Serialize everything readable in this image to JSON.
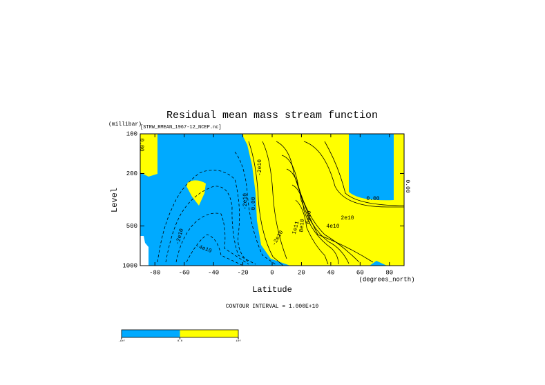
{
  "chart_data": {
    "type": "contour",
    "title": "Residual mean mass stream function",
    "subtitle": "[STRW_RMEAN_1967-12_NCEP.nc]",
    "x_label": "Latitude",
    "x_units": "(degrees_north)",
    "y_label": "Level",
    "y_units": "(millibar)",
    "xlim": [
      -90,
      90
    ],
    "xticks": [
      -80,
      -60,
      -40,
      -20,
      0,
      20,
      40,
      60,
      80
    ],
    "ylim": [
      1000,
      100
    ],
    "yticks": [
      100,
      200,
      500,
      1000
    ],
    "y_log": true,
    "negative_color": "#00aaff",
    "positive_color": "#ffff00",
    "contour_labels": [
      "0.00",
      "-2e10",
      "-4e10",
      "-2e10",
      "0.00",
      "-2e10",
      "-2e10",
      "1e11",
      "8e10",
      "6e10",
      "4e10",
      "2e10",
      "0.00",
      "0.00"
    ],
    "footnote": "CONTOUR INTERVAL = 1.000E+10",
    "colorbar": {
      "labels": [
        "-inf",
        "0.0",
        "inf"
      ]
    }
  }
}
